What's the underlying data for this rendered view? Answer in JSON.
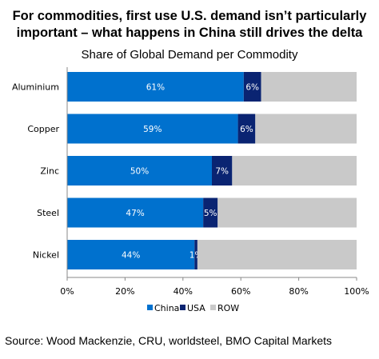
{
  "headline": "For commodities, first use U.S. demand isn’t particularly important – what happens in China still drives the delta",
  "source": "Source: Wood Mackenzie, CRU, worldsteel, BMO Capital Markets",
  "chart_data": {
    "type": "bar",
    "orientation": "horizontal",
    "stacked": true,
    "title": "Share of Global Demand per Commodity",
    "categories": [
      "Aluminium",
      "Copper",
      "Zinc",
      "Steel",
      "Nickel"
    ],
    "series": [
      {
        "name": "China",
        "color": "#0071ce",
        "values": [
          61,
          59,
          50,
          47,
          44
        ],
        "labels": [
          "61%",
          "59%",
          "50%",
          "47%",
          "44%"
        ]
      },
      {
        "name": "USA",
        "color": "#0a2472",
        "values": [
          6,
          6,
          7,
          5,
          1
        ],
        "labels": [
          "6%",
          "6%",
          "7%",
          "5%",
          "1%"
        ]
      },
      {
        "name": "ROW",
        "color": "#c9c9c9",
        "values": [
          33,
          35,
          43,
          48,
          55
        ],
        "labels": []
      }
    ],
    "xlim": [
      0,
      100
    ],
    "xticks": [
      "0%",
      "20%",
      "40%",
      "60%",
      "80%",
      "100%"
    ],
    "grid": false,
    "legend_position": "bottom"
  }
}
